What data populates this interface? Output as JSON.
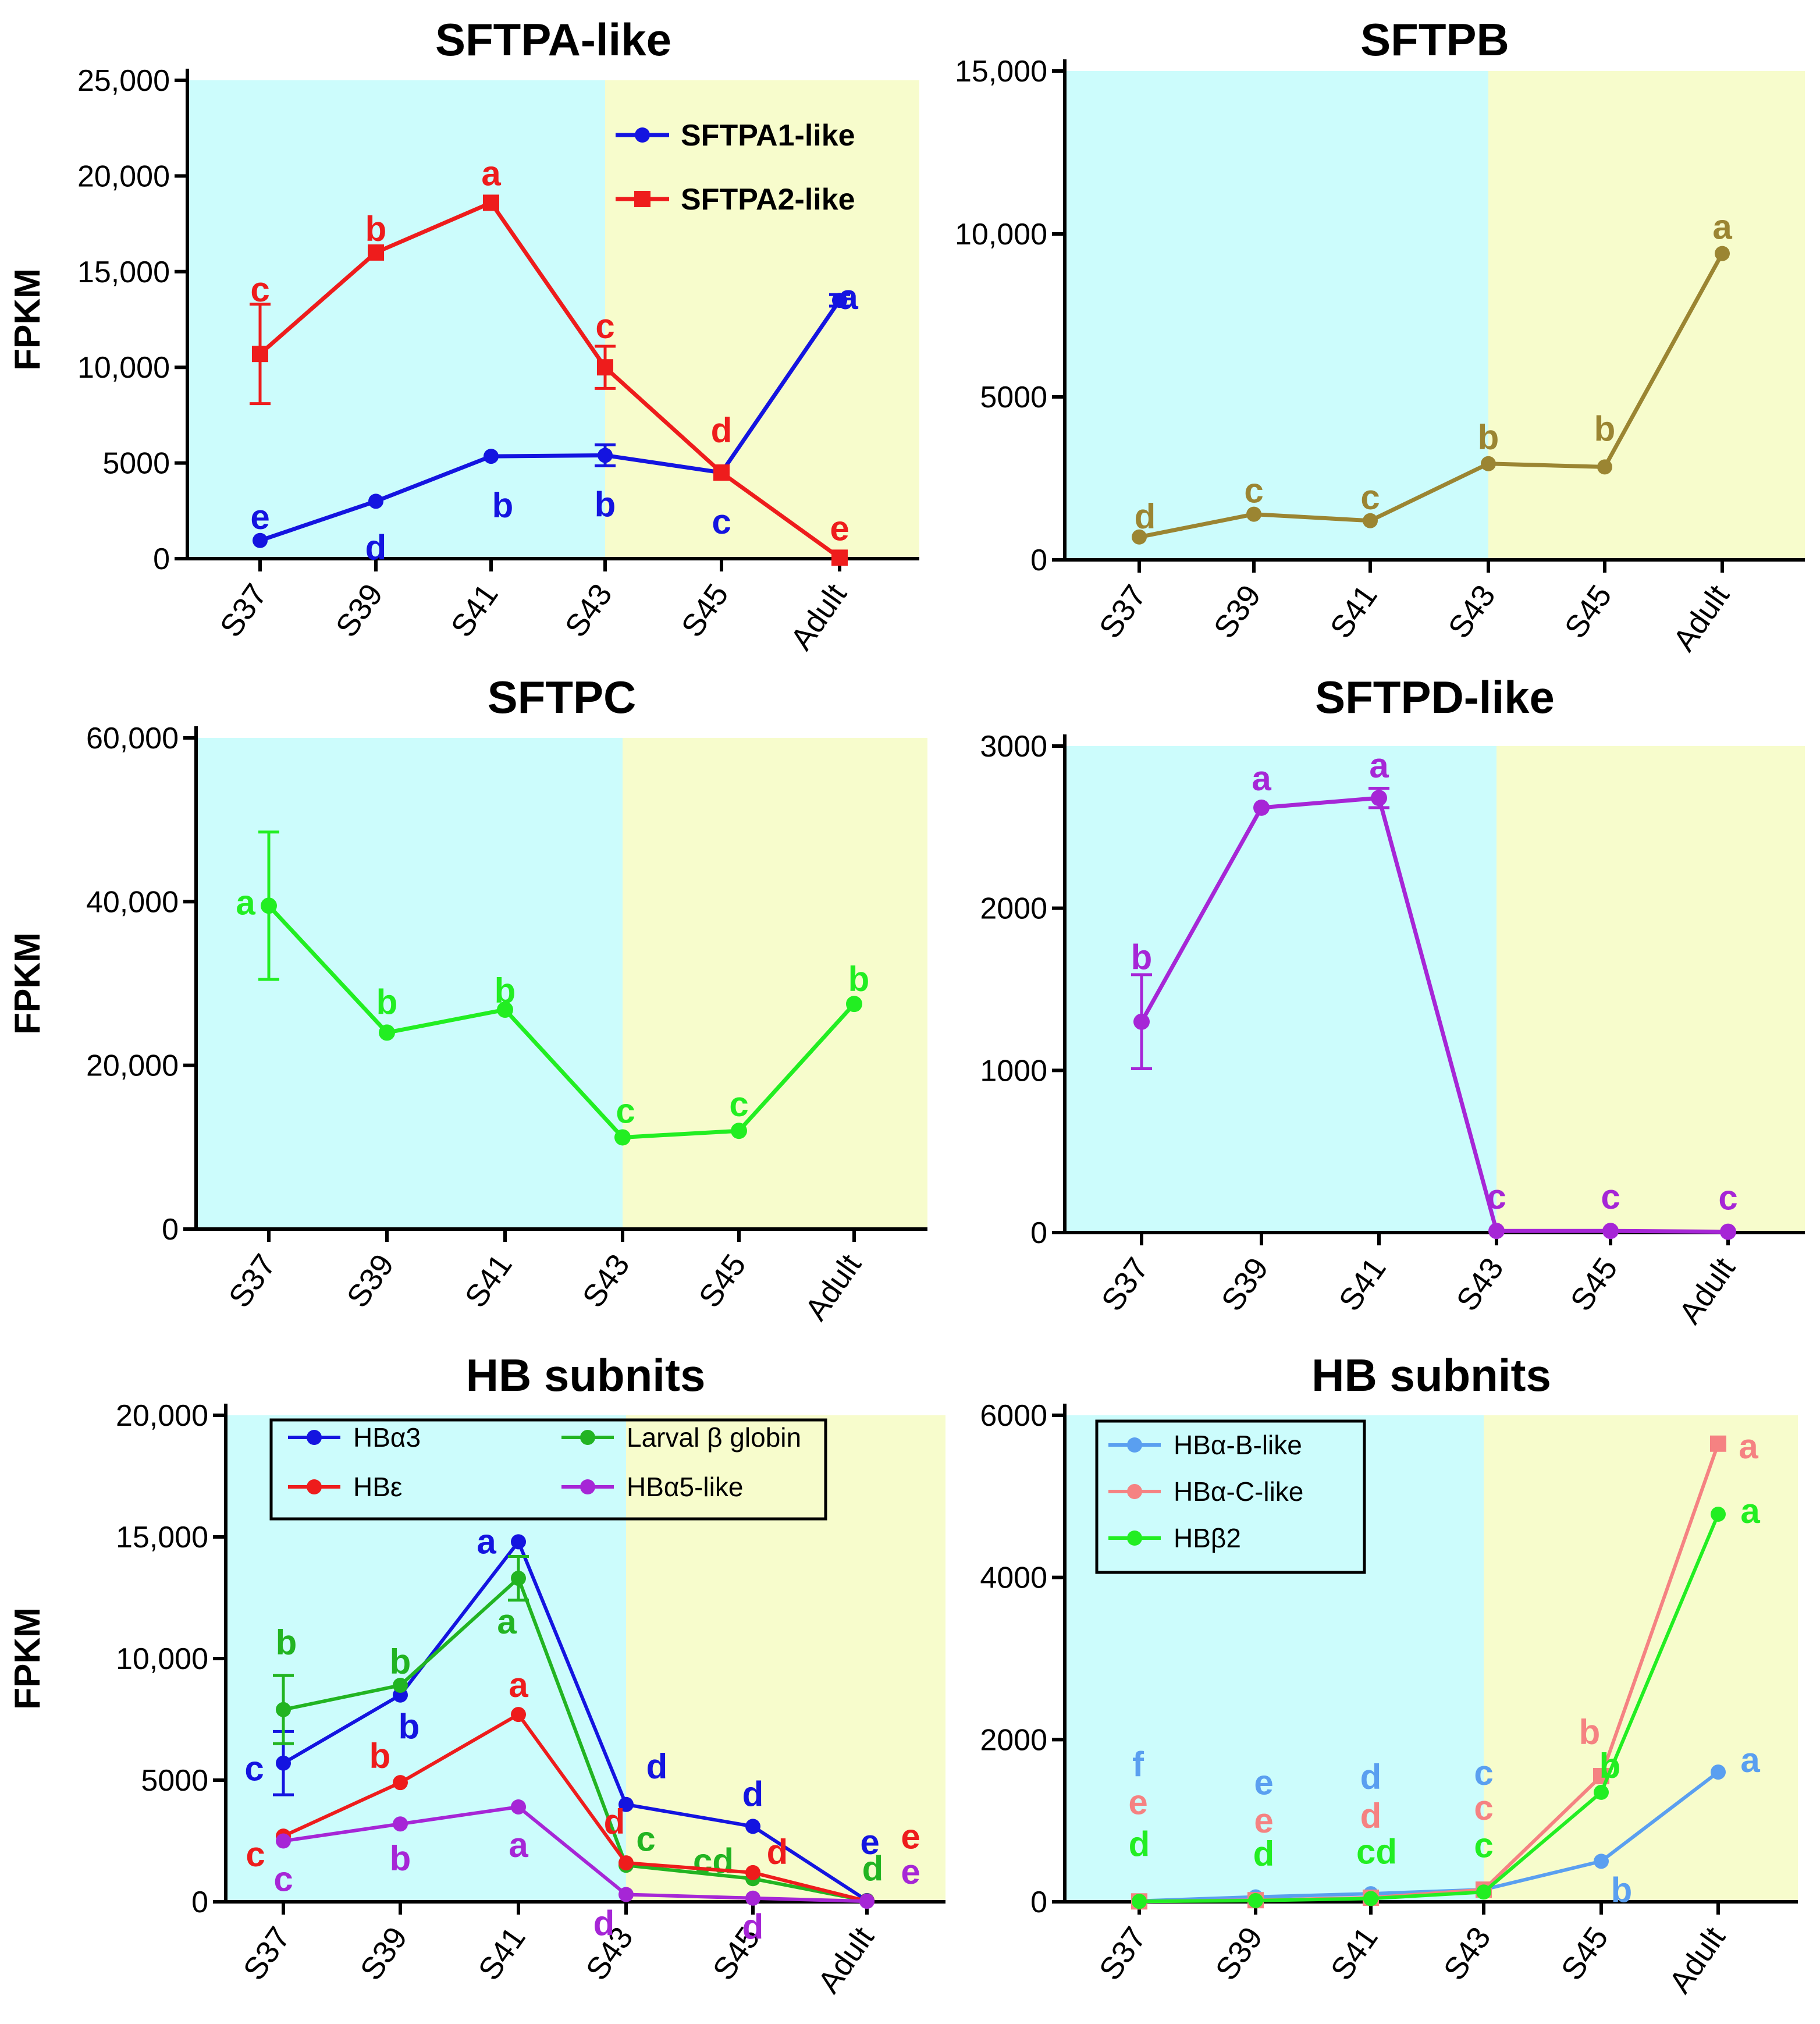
{
  "colors": {
    "bg_juvenile": "#ccfcfc",
    "bg_adult": "#f7fccc",
    "blue": "#1414e0",
    "red": "#ee1c1c",
    "olive": "#9b8532",
    "green": "#22ee22",
    "purple": "#a626d6",
    "darkgreen": "#22b422",
    "lightblue": "#5a9ff0",
    "salmon": "#f58282"
  },
  "chart_data": [
    {
      "type": "line",
      "id": "sftpa",
      "title": "SFTPA-like",
      "ylabel": "FPKM",
      "categories": [
        "S37",
        "S39",
        "S41",
        "S43",
        "S45",
        "Adult"
      ],
      "ylim": [
        0,
        25000
      ],
      "yticks": [
        "0",
        "5000",
        "10,000",
        "15,000",
        "20,000",
        "25,000"
      ],
      "shade_split": "S43",
      "legend": {
        "position": "top-right",
        "entries": [
          "SFTPA1-like",
          "SFTPA2-like"
        ]
      },
      "series": [
        {
          "name": "SFTPA1-like",
          "color": "blue",
          "marker": "circle",
          "values": [
            950,
            3000,
            5350,
            5400,
            4500,
            13500
          ],
          "errors": [
            0,
            0,
            0,
            550,
            0,
            300
          ],
          "letters": [
            "e",
            "d",
            "b",
            "b",
            "c",
            "a"
          ]
        },
        {
          "name": "SFTPA2-like",
          "color": "red",
          "marker": "square",
          "values": [
            10700,
            16000,
            18600,
            10000,
            4500,
            50
          ],
          "errors": [
            2600,
            0,
            0,
            1100,
            0,
            0
          ],
          "letters": [
            "c",
            "b",
            "a",
            "c",
            "d",
            "e"
          ]
        }
      ]
    },
    {
      "type": "line",
      "id": "sftpb",
      "title": "SFTPB",
      "ylabel": "",
      "categories": [
        "S37",
        "S39",
        "S41",
        "S43",
        "S45",
        "Adult"
      ],
      "ylim": [
        0,
        15000
      ],
      "yticks": [
        "0",
        "5000",
        "10,000",
        "15,000"
      ],
      "shade_split": "S43",
      "series": [
        {
          "name": "SFTPB",
          "color": "olive",
          "marker": "circle",
          "values": [
            700,
            1400,
            1200,
            2950,
            2850,
            9400
          ],
          "errors": [
            0,
            0,
            0,
            0,
            0,
            0
          ],
          "letters": [
            "d",
            "c",
            "c",
            "b",
            "b",
            "a"
          ]
        }
      ]
    },
    {
      "type": "line",
      "id": "sftpc",
      "title": "SFTPC",
      "ylabel": "FPKM",
      "categories": [
        "S37",
        "S39",
        "S41",
        "S43",
        "S45",
        "Adult"
      ],
      "ylim": [
        0,
        60000
      ],
      "yticks": [
        "0",
        "20,000",
        "40,000",
        "60,000"
      ],
      "shade_split": "S43",
      "series": [
        {
          "name": "SFTPC",
          "color": "green",
          "marker": "circle",
          "values": [
            39500,
            24000,
            26800,
            11200,
            12000,
            27500
          ],
          "errors": [
            9000,
            0,
            0,
            0,
            0,
            0
          ],
          "letters": [
            "a",
            "b",
            "b",
            "c",
            "c",
            "b"
          ]
        }
      ]
    },
    {
      "type": "line",
      "id": "sftpd",
      "title": "SFTPD-like",
      "ylabel": "",
      "categories": [
        "S37",
        "S39",
        "S41",
        "S43",
        "S45",
        "Adult"
      ],
      "ylim": [
        0,
        3000
      ],
      "yticks": [
        "0",
        "1000",
        "2000",
        "3000"
      ],
      "shade_split": "S43",
      "series": [
        {
          "name": "SFTPD-like",
          "color": "purple",
          "marker": "circle",
          "values": [
            1300,
            2620,
            2680,
            10,
            10,
            5
          ],
          "errors": [
            290,
            0,
            60,
            0,
            0,
            0
          ],
          "letters": [
            "b",
            "a",
            "a",
            "c",
            "c",
            "c"
          ]
        }
      ]
    },
    {
      "type": "line",
      "id": "hb1",
      "title": "HB subnits",
      "ylabel": "FPKM",
      "categories": [
        "S37",
        "S39",
        "S41",
        "S43",
        "S45",
        "Adult"
      ],
      "ylim": [
        0,
        20000
      ],
      "yticks": [
        "0",
        "5000",
        "10,000",
        "15,000",
        "20,000"
      ],
      "shade_split": "S43",
      "legend": {
        "position": "top",
        "entries": [
          "HBα3",
          "Larval β globin",
          "HBε",
          "HBα5-like"
        ]
      },
      "series": [
        {
          "name": "HBα3",
          "color": "blue",
          "marker": "circle",
          "values": [
            5700,
            8500,
            14800,
            4000,
            3100,
            50
          ],
          "errors": [
            1300,
            0,
            0,
            0,
            0,
            0
          ],
          "letters": [
            "c",
            "b",
            "a",
            "d",
            "d",
            "e"
          ]
        },
        {
          "name": "Larval β globin",
          "color": "darkgreen",
          "marker": "circle",
          "values": [
            7900,
            8900,
            13300,
            1500,
            950,
            40
          ],
          "errors": [
            1400,
            0,
            900,
            0,
            0,
            0
          ],
          "letters": [
            "b",
            "b",
            "a",
            "c",
            "cd",
            "d"
          ]
        },
        {
          "name": "HBε",
          "color": "red",
          "marker": "circle",
          "values": [
            2700,
            4900,
            7700,
            1600,
            1200,
            30
          ],
          "errors": [
            0,
            0,
            0,
            0,
            0,
            0
          ],
          "letters": [
            "c",
            "b",
            "a",
            "d",
            "d",
            "e"
          ]
        },
        {
          "name": "HBα5-like",
          "color": "purple",
          "marker": "circle",
          "values": [
            2500,
            3200,
            3900,
            300,
            150,
            20
          ],
          "errors": [
            0,
            0,
            0,
            0,
            0,
            0
          ],
          "letters": [
            "c",
            "b",
            "a",
            "d",
            "d",
            "e"
          ]
        }
      ]
    },
    {
      "type": "line",
      "id": "hb2",
      "title": "HB subnits",
      "ylabel": "",
      "categories": [
        "S37",
        "S39",
        "S41",
        "S43",
        "S45",
        "Adult"
      ],
      "ylim": [
        0,
        6000
      ],
      "yticks": [
        "0",
        "2000",
        "4000",
        "6000"
      ],
      "shade_split": "S43",
      "legend": {
        "position": "top-left",
        "entries": [
          "HBα-B-like",
          "HBα-C-like",
          "HBβ2"
        ]
      },
      "series": [
        {
          "name": "HBα-B-like",
          "color": "lightblue",
          "marker": "circle",
          "values": [
            10,
            60,
            100,
            150,
            500,
            1600
          ],
          "errors": [
            0,
            0,
            0,
            0,
            0,
            0
          ],
          "letters": [
            "f",
            "e",
            "d",
            "c",
            "b",
            "a"
          ]
        },
        {
          "name": "HBα-C-like",
          "color": "salmon",
          "marker": "square",
          "values": [
            5,
            20,
            50,
            150,
            1550,
            5650
          ],
          "errors": [
            0,
            0,
            0,
            0,
            0,
            0
          ],
          "letters": [
            "e",
            "e",
            "d",
            "c",
            "b",
            "a"
          ]
        },
        {
          "name": "HBβ2",
          "color": "green",
          "marker": "circle",
          "values": [
            5,
            15,
            40,
            120,
            1350,
            4780
          ],
          "errors": [
            0,
            0,
            0,
            0,
            0,
            0
          ],
          "letters": [
            "d",
            "d",
            "cd",
            "c",
            "b",
            "a"
          ]
        }
      ]
    }
  ]
}
